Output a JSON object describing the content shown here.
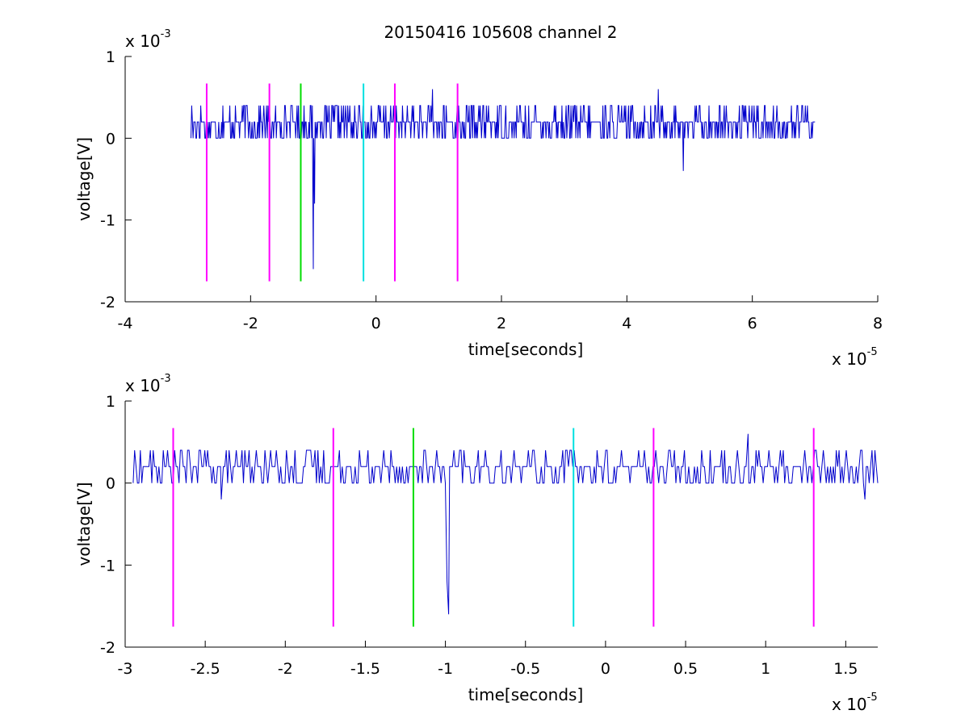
{
  "chart_data": [
    {
      "type": "line",
      "title": "20150416 105608 channel 2",
      "xlabel": "time[seconds]",
      "ylabel": "voltage[V]",
      "x_exponent_label": "x 10",
      "x_exponent": "-5",
      "y_exponent_label": "x 10",
      "y_exponent": "-3",
      "xlim": [
        -4,
        8
      ],
      "ylim": [
        -2,
        1
      ],
      "xticks": [
        -4,
        -2,
        0,
        2,
        4,
        6,
        8
      ],
      "yticks": [
        -2,
        -1,
        0,
        1
      ],
      "xtick_labels": [
        "-4",
        "-2",
        "0",
        "2",
        "4",
        "6",
        "8"
      ],
      "ytick_labels": [
        "-2",
        "-1",
        "0",
        "1"
      ],
      "grid": false,
      "signal": {
        "color": "#0000cc",
        "x_range": [
          -2.95,
          7.0
        ],
        "baseline": 0.2,
        "levels": [
          0,
          0.2,
          0.4
        ],
        "spikes": [
          {
            "x": -1.0,
            "y": -1.6
          },
          {
            "x": -0.98,
            "y": -0.8
          },
          {
            "x": 4.9,
            "y": -0.4
          },
          {
            "x": 4.5,
            "y": 0.6
          },
          {
            "x": 0.9,
            "y": 0.6
          }
        ]
      },
      "markers": [
        {
          "x": -2.7,
          "color": "#ff00ff",
          "y_top": 0.67,
          "y_bottom": -1.75
        },
        {
          "x": -1.7,
          "color": "#ff00ff",
          "y_top": 0.67,
          "y_bottom": -1.75
        },
        {
          "x": -1.2,
          "color": "#00dd00",
          "y_top": 0.67,
          "y_bottom": -1.75
        },
        {
          "x": -0.2,
          "color": "#00e0e0",
          "y_top": 0.67,
          "y_bottom": -1.75
        },
        {
          "x": 0.3,
          "color": "#ff00ff",
          "y_top": 0.67,
          "y_bottom": -1.75
        },
        {
          "x": 1.3,
          "color": "#ff00ff",
          "y_top": 0.67,
          "y_bottom": -1.75
        }
      ]
    },
    {
      "type": "line",
      "xlabel": "time[seconds]",
      "ylabel": "voltage[V]",
      "x_exponent_label": "x 10",
      "x_exponent": "-5",
      "y_exponent_label": "x 10",
      "y_exponent": "-3",
      "xlim": [
        -3.0,
        1.7
      ],
      "ylim": [
        -2,
        1
      ],
      "xticks": [
        -3,
        -2.5,
        -2,
        -1.5,
        -1,
        -0.5,
        0,
        0.5,
        1,
        1.5
      ],
      "yticks": [
        -2,
        -1,
        0,
        1
      ],
      "xtick_labels": [
        "-3",
        "-2.5",
        "-2",
        "-1.5",
        "-1",
        "-0.5",
        "0",
        "0.5",
        "1",
        "1.5"
      ],
      "ytick_labels": [
        "-2",
        "-1",
        "0",
        "1"
      ],
      "grid": false,
      "signal": {
        "color": "#0000cc",
        "x_range": [
          -2.95,
          1.7
        ],
        "baseline": 0.2,
        "levels": [
          0,
          0.2,
          0.4
        ],
        "spikes": [
          {
            "x": -0.98,
            "y": -1.6
          },
          {
            "x": -0.99,
            "y": -1.2
          },
          {
            "x": 0.89,
            "y": 0.6
          },
          {
            "x": -2.4,
            "y": -0.2
          },
          {
            "x": 1.62,
            "y": -0.2
          }
        ]
      },
      "markers": [
        {
          "x": -2.7,
          "color": "#ff00ff",
          "y_top": 0.67,
          "y_bottom": -1.75
        },
        {
          "x": -1.7,
          "color": "#ff00ff",
          "y_top": 0.67,
          "y_bottom": -1.75
        },
        {
          "x": -1.2,
          "color": "#00dd00",
          "y_top": 0.67,
          "y_bottom": -1.75
        },
        {
          "x": -0.2,
          "color": "#00e0e0",
          "y_top": 0.67,
          "y_bottom": -1.75
        },
        {
          "x": 0.3,
          "color": "#ff00ff",
          "y_top": 0.67,
          "y_bottom": -1.75
        },
        {
          "x": 1.3,
          "color": "#ff00ff",
          "y_top": 0.67,
          "y_bottom": -1.75
        }
      ]
    }
  ]
}
